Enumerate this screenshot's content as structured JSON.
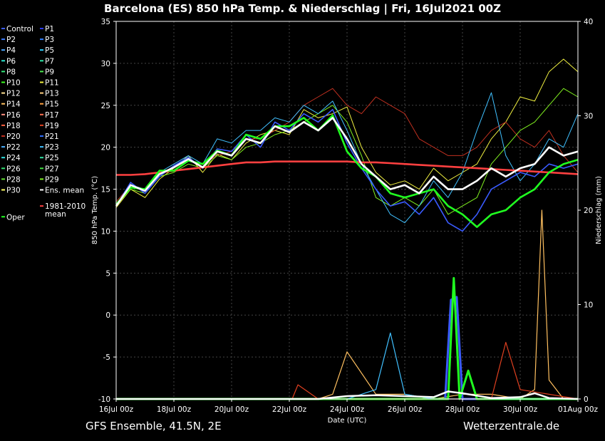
{
  "title": "Barcelona  (ES)  850 hPa Temp. & Niederschlag | Fri, 16Jul2021 00Z",
  "footer": {
    "left": "GFS Ensemble, 41.5N, 2E",
    "right": "Wetterzentrale.de"
  },
  "chart_data": {
    "type": "line",
    "title": "Barcelona  (ES)  850 hPa Temp. & Niederschlag | Fri, 16Jul2021 00Z",
    "xlabel": "Date (UTC)",
    "ylabel": "850 hPa Temp. (°C)",
    "y2label": "Niederschlag (mm)",
    "ylim": [
      -10,
      35
    ],
    "y2lim": [
      0,
      40
    ],
    "yticks": [
      "35",
      "30",
      "25",
      "20",
      "15",
      "10",
      "5",
      "0",
      "-5",
      "-10"
    ],
    "y2ticks": [
      "40",
      "30",
      "20",
      "10",
      "0"
    ],
    "xticks": [
      "16Jul 00z",
      "18Jul 00z",
      "20Jul 00z",
      "22Jul 00z",
      "24Jul 00z",
      "26Jul 00z",
      "28Jul 00z",
      "30Jul 00z",
      "01Aug 00z"
    ],
    "x_range_days": [
      0,
      16
    ],
    "grid": true,
    "legend_position": "left",
    "legend": [
      {
        "name": "Control",
        "color": "#3a5bff"
      },
      {
        "name": "P1",
        "color": "#2a3bff"
      },
      {
        "name": "P2",
        "color": "#3a7bff"
      },
      {
        "name": "P3",
        "color": "#2f7fff"
      },
      {
        "name": "P4",
        "color": "#4aa8ff"
      },
      {
        "name": "P5",
        "color": "#29d0ff"
      },
      {
        "name": "P6",
        "color": "#2be8d0"
      },
      {
        "name": "P7",
        "color": "#2ee8a8"
      },
      {
        "name": "P8",
        "color": "#33e878"
      },
      {
        "name": "P9",
        "color": "#4be850"
      },
      {
        "name": "P10",
        "color": "#3cff20"
      },
      {
        "name": "P11",
        "color": "#f0f040"
      },
      {
        "name": "P12",
        "color": "#ffe090"
      },
      {
        "name": "P13",
        "color": "#ffd080"
      },
      {
        "name": "P14",
        "color": "#ffc060"
      },
      {
        "name": "P15",
        "color": "#ffa040"
      },
      {
        "name": "P16",
        "color": "#ff9080"
      },
      {
        "name": "P17",
        "color": "#ff7050"
      },
      {
        "name": "P18",
        "color": "#ff6040"
      },
      {
        "name": "P19",
        "color": "#e04020"
      },
      {
        "name": "P20",
        "color": "#c03020"
      },
      {
        "name": "P21",
        "color": "#2f6fff"
      },
      {
        "name": "P22",
        "color": "#4ab0ff"
      },
      {
        "name": "P23",
        "color": "#40c0ff"
      },
      {
        "name": "P24",
        "color": "#30e0e0"
      },
      {
        "name": "P25",
        "color": "#30e0a0"
      },
      {
        "name": "P26",
        "color": "#30e070"
      },
      {
        "name": "P27",
        "color": "#40e040"
      },
      {
        "name": "P28",
        "color": "#60e030"
      },
      {
        "name": "P29",
        "color": "#80f020"
      },
      {
        "name": "P30",
        "color": "#ffff60"
      },
      {
        "name": "Ens. mean",
        "color": "#ffffff"
      },
      {
        "name": "Oper",
        "color": "#20ff20"
      },
      {
        "name": "1981-2010\nmean",
        "color": "#ff4040"
      }
    ],
    "series": [
      {
        "name": "Ens. mean",
        "color": "#ffffff",
        "x": [
          0,
          0.5,
          1,
          1.5,
          2,
          2.5,
          3,
          3.5,
          4,
          4.5,
          5,
          5.5,
          6,
          6.5,
          7,
          7.5,
          8,
          8.5,
          9,
          9.5,
          10,
          10.5,
          11,
          11.5,
          12,
          12.5,
          13,
          13.5,
          14,
          14.5,
          15,
          15.5,
          16
        ],
        "values": [
          13,
          15.5,
          14.8,
          16.8,
          17.6,
          18.6,
          17.6,
          19.5,
          19,
          21,
          20.5,
          22.5,
          21.8,
          23,
          22,
          23.5,
          21,
          18,
          16.5,
          15,
          15.5,
          14.5,
          16.5,
          15,
          15,
          16,
          17.5,
          16.5,
          17.5,
          18,
          20,
          19,
          19.5
        ]
      },
      {
        "name": "Oper",
        "color": "#20ff20",
        "x": [
          0,
          0.5,
          1,
          1.5,
          2,
          2.5,
          3,
          3.5,
          4,
          4.5,
          5,
          5.5,
          6,
          6.5,
          7,
          7.5,
          8,
          8.5,
          9,
          9.5,
          10,
          10.5,
          11,
          11.5,
          12,
          12.5,
          13,
          13.5,
          14,
          14.5,
          15,
          15.5,
          16
        ],
        "values": [
          13.2,
          15.2,
          15,
          17.2,
          17.2,
          18.4,
          18,
          19.6,
          19,
          21.5,
          21,
          22.5,
          22.5,
          23.5,
          22,
          23.8,
          19.5,
          17.5,
          16.5,
          14.5,
          14,
          14.5,
          15,
          13,
          12,
          10.5,
          12,
          12.5,
          14,
          15,
          17,
          18,
          18.5
        ]
      },
      {
        "name": "1981-2010 mean",
        "color": "#ff4040",
        "x": [
          0,
          0.5,
          1,
          1.5,
          2,
          2.5,
          3,
          3.5,
          4,
          4.5,
          5,
          5.5,
          6,
          6.5,
          7,
          7.5,
          8,
          8.5,
          9,
          9.5,
          10,
          10.5,
          11,
          11.5,
          12,
          12.5,
          13,
          13.5,
          14,
          14.5,
          15,
          15.5,
          16
        ],
        "values": [
          16.7,
          16.7,
          16.8,
          17,
          17.2,
          17.4,
          17.6,
          17.8,
          18,
          18.2,
          18.2,
          18.3,
          18.3,
          18.3,
          18.3,
          18.3,
          18.3,
          18.2,
          18.2,
          18.1,
          18,
          17.9,
          17.8,
          17.7,
          17.6,
          17.5,
          17.4,
          17.3,
          17.2,
          17.1,
          17,
          16.9,
          16.8
        ]
      },
      {
        "name": "Control",
        "color": "#3a5bff",
        "x": [
          0,
          0.5,
          1,
          1.5,
          2,
          2.5,
          3,
          3.5,
          4,
          4.5,
          5,
          5.5,
          6,
          6.5,
          7,
          7.5,
          8,
          8.5,
          9,
          9.5,
          10,
          10.5,
          11,
          11.5,
          12,
          12.5,
          13,
          13.5,
          14,
          14.5,
          15,
          15.5,
          16
        ],
        "values": [
          13,
          15.8,
          14.5,
          16.5,
          17.8,
          18.8,
          17.5,
          19.8,
          19.5,
          21.5,
          20,
          23,
          22,
          24,
          23,
          24.5,
          20.5,
          17.5,
          15,
          13,
          13.5,
          12,
          14,
          11,
          10,
          12,
          15,
          16,
          17,
          16.5,
          18,
          17.5,
          18
        ]
      },
      {
        "name": "P11",
        "color": "#f0f040",
        "x": [
          0,
          0.5,
          1,
          1.5,
          2,
          2.5,
          3,
          3.5,
          4,
          4.5,
          5,
          5.5,
          6,
          6.5,
          7,
          7.5,
          8,
          8.5,
          9,
          9.5,
          10,
          10.5,
          11,
          11.5,
          12,
          12.5,
          13,
          13.5,
          14,
          14.5,
          15,
          15.5,
          16
        ],
        "values": [
          12.8,
          15,
          14,
          16.2,
          17.5,
          19,
          17,
          19.2,
          18.5,
          20.5,
          21.5,
          22,
          21.5,
          24.5,
          23.5,
          24,
          24.8,
          20,
          17,
          15.5,
          16,
          15,
          17.5,
          16,
          17,
          18,
          21,
          23,
          26,
          25.5,
          29,
          30.5,
          29
        ]
      },
      {
        "name": "P20",
        "color": "#c03020",
        "x": [
          0,
          0.5,
          1,
          1.5,
          2,
          2.5,
          3,
          3.5,
          4,
          4.5,
          5,
          5.5,
          6,
          6.5,
          7,
          7.5,
          8,
          8.5,
          9,
          9.5,
          10,
          10.5,
          11,
          11.5,
          12,
          12.5,
          13,
          13.5,
          14,
          14.5,
          15,
          15.5,
          16
        ],
        "values": [
          13.5,
          15.5,
          15,
          17,
          17.5,
          18.5,
          18,
          19,
          19.5,
          21,
          21,
          22,
          23,
          25,
          26,
          27,
          25,
          24,
          26,
          25,
          24,
          21,
          20,
          19,
          19,
          20,
          22,
          23,
          21,
          20,
          22,
          19,
          17
        ]
      },
      {
        "name": "P29",
        "color": "#80f020",
        "x": [
          0,
          0.5,
          1,
          1.5,
          2,
          2.5,
          3,
          3.5,
          4,
          4.5,
          5,
          5.5,
          6,
          6.5,
          7,
          7.5,
          8,
          8.5,
          9,
          9.5,
          10,
          10.5,
          11,
          11.5,
          12,
          12.5,
          13,
          13.5,
          14,
          14.5,
          15,
          15.5,
          16
        ],
        "values": [
          13,
          15,
          14.5,
          16.5,
          17,
          18,
          17.5,
          19,
          18.5,
          20,
          20.5,
          21.5,
          22,
          23,
          24,
          25,
          23,
          19,
          14,
          13,
          14,
          13,
          15,
          12,
          13,
          14,
          18,
          20,
          22,
          23,
          25,
          27,
          26
        ]
      },
      {
        "name": "P23",
        "color": "#40c0ff",
        "x": [
          0,
          0.5,
          1,
          1.5,
          2,
          2.5,
          3,
          3.5,
          4,
          4.5,
          5,
          5.5,
          6,
          6.5,
          7,
          7.5,
          8,
          8.5,
          9,
          9.5,
          10,
          10.5,
          11,
          11.5,
          12,
          12.5,
          13,
          13.5,
          14,
          14.5,
          15,
          15.5,
          16
        ],
        "values": [
          13,
          15.5,
          15,
          17,
          18,
          19,
          18,
          21,
          20.5,
          22,
          22,
          23.5,
          23,
          25,
          24,
          25.5,
          22,
          18,
          15,
          12,
          11,
          13,
          16,
          14,
          17,
          22,
          26.5,
          19,
          16,
          18,
          21,
          20,
          24
        ]
      }
    ],
    "precip_series": [
      {
        "name": "P14",
        "color": "#ffc060",
        "x": [
          0,
          7,
          7.5,
          8,
          9,
          10,
          11,
          12,
          13,
          14,
          14.5,
          14.75,
          15,
          15.5,
          16
        ],
        "values": [
          0,
          0,
          0.5,
          5,
          0.5,
          0.5,
          0,
          0.5,
          0.5,
          0,
          1,
          20,
          2,
          0,
          0
        ]
      },
      {
        "name": "Control",
        "color": "#3a5bff",
        "x": [
          0,
          11,
          11.4,
          11.6,
          11.8,
          12,
          13,
          16
        ],
        "values": [
          0,
          0,
          0,
          10.5,
          10.8,
          0,
          0,
          0
        ]
      },
      {
        "name": "Oper",
        "color": "#20ff20",
        "x": [
          0,
          11,
          11.5,
          11.7,
          11.9,
          12.2,
          12.5,
          13,
          16
        ],
        "values": [
          0,
          0,
          0,
          12.8,
          0,
          3,
          0,
          0,
          0
        ]
      },
      {
        "name": "P23",
        "color": "#40c0ff",
        "x": [
          0,
          8,
          9,
          9.5,
          10,
          11,
          16
        ],
        "values": [
          0,
          0,
          1,
          7,
          0.5,
          0,
          0
        ]
      },
      {
        "name": "P19",
        "color": "#e04020",
        "x": [
          0,
          6,
          6.1,
          6.3,
          7,
          13,
          13.5,
          14,
          16
        ],
        "values": [
          0,
          0,
          0,
          1.5,
          0,
          0,
          6,
          1,
          0
        ]
      },
      {
        "name": "Ens. mean",
        "color": "#ffffff",
        "x": [
          0,
          7,
          8,
          9,
          10,
          11,
          11.5,
          12,
          13,
          14,
          14.5,
          15,
          16
        ],
        "values": [
          0,
          0,
          0.3,
          0.4,
          0.3,
          0.2,
          0.8,
          0.6,
          0.1,
          0.2,
          0.6,
          0.1,
          0
        ]
      }
    ]
  }
}
